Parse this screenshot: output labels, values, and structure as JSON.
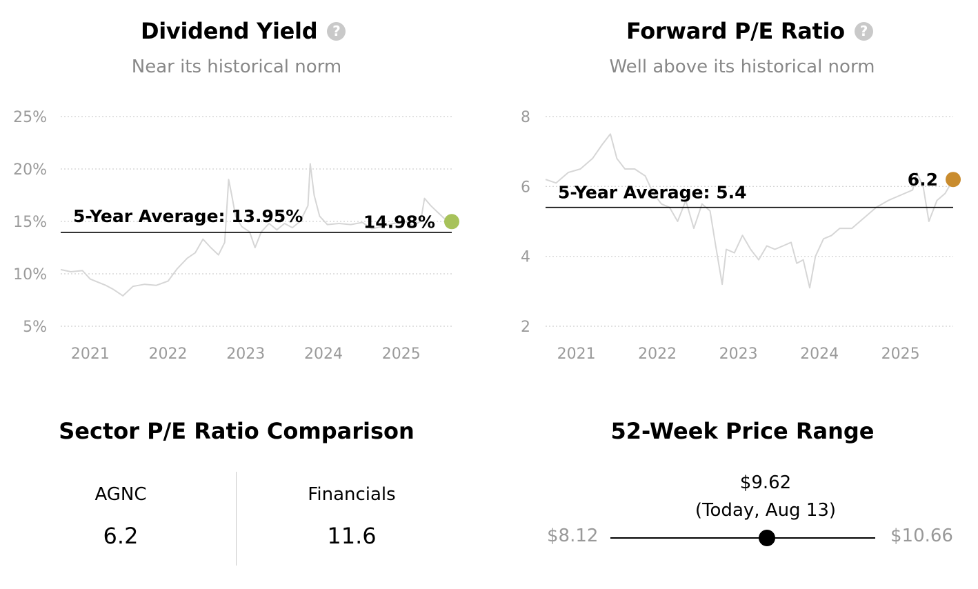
{
  "charts": [
    {
      "title": "Dividend Yield",
      "subtitle": "Near its historical norm",
      "average_label": "5-Year Average: 13.95%",
      "current_label": "14.98%",
      "current_color": "#a7c25a"
    },
    {
      "title": "Forward P/E Ratio",
      "subtitle": "Well above its historical norm",
      "average_label": "5-Year Average: 5.4",
      "current_label": "6.2",
      "current_color": "#c98c2e"
    }
  ],
  "chart_data": [
    {
      "type": "line",
      "title": "Dividend Yield",
      "y_ticks": [
        "5%",
        "10%",
        "15%",
        "20%",
        "25%"
      ],
      "y_tick_values": [
        5,
        10,
        15,
        20,
        25
      ],
      "ylim": [
        5,
        25
      ],
      "x_ticks": [
        "2021",
        "2022",
        "2023",
        "2024",
        "2025"
      ],
      "x_tick_values": [
        2021,
        2022,
        2023,
        2024,
        2025
      ],
      "xlim": [
        2020.62,
        2025.65
      ],
      "average": 13.95,
      "current": 14.98,
      "grid": true,
      "series": [
        {
          "x": [
            2020.62,
            2020.75,
            2020.9,
            2021.0,
            2021.1,
            2021.2,
            2021.3,
            2021.42,
            2021.55,
            2021.7,
            2021.85,
            2022.0,
            2022.12,
            2022.25,
            2022.35,
            2022.45,
            2022.55,
            2022.65,
            2022.73,
            2022.78,
            2022.82,
            2022.87,
            2022.95,
            2023.05,
            2023.12,
            2023.2,
            2023.3,
            2023.4,
            2023.5,
            2023.6,
            2023.7,
            2023.8,
            2023.83,
            2023.88,
            2023.95,
            2024.05,
            2024.2,
            2024.35,
            2024.5,
            2024.62,
            2024.75,
            2024.9,
            2025.05,
            2025.15,
            2025.25,
            2025.3,
            2025.38,
            2025.45,
            2025.55,
            2025.65
          ],
          "y": [
            10.4,
            10.2,
            10.3,
            9.5,
            9.2,
            8.9,
            8.5,
            7.9,
            8.8,
            9.0,
            8.9,
            9.3,
            10.5,
            11.5,
            12.0,
            13.3,
            12.5,
            11.8,
            13.0,
            19.0,
            17.5,
            15.5,
            14.5,
            14.0,
            12.5,
            14.0,
            14.8,
            14.2,
            14.8,
            14.4,
            15.0,
            16.5,
            20.5,
            17.5,
            15.5,
            14.7,
            14.8,
            14.7,
            14.9,
            14.3,
            14.5,
            14.8,
            15.0,
            14.6,
            15.0,
            17.2,
            16.5,
            16.0,
            15.3,
            14.98
          ]
        }
      ]
    },
    {
      "type": "line",
      "title": "Forward P/E Ratio",
      "y_ticks": [
        "2",
        "4",
        "6",
        "8"
      ],
      "y_tick_values": [
        2,
        4,
        6,
        8
      ],
      "ylim": [
        2,
        8
      ],
      "x_ticks": [
        "2021",
        "2022",
        "2023",
        "2024",
        "2025"
      ],
      "x_tick_values": [
        2021,
        2022,
        2023,
        2024,
        2025
      ],
      "xlim": [
        2020.62,
        2025.65
      ],
      "average": 5.4,
      "current": 6.2,
      "grid": true,
      "series": [
        {
          "x": [
            2020.62,
            2020.75,
            2020.9,
            2021.05,
            2021.2,
            2021.32,
            2021.42,
            2021.5,
            2021.6,
            2021.72,
            2021.85,
            2021.95,
            2022.05,
            2022.15,
            2022.25,
            2022.35,
            2022.45,
            2022.55,
            2022.65,
            2022.72,
            2022.8,
            2022.85,
            2022.95,
            2023.05,
            2023.15,
            2023.25,
            2023.35,
            2023.45,
            2023.55,
            2023.65,
            2023.72,
            2023.8,
            2023.88,
            2023.95,
            2024.05,
            2024.15,
            2024.25,
            2024.4,
            2024.55,
            2024.7,
            2024.85,
            2024.95,
            2025.05,
            2025.15,
            2025.2,
            2025.28,
            2025.35,
            2025.45,
            2025.55,
            2025.65
          ],
          "y": [
            6.2,
            6.1,
            6.4,
            6.5,
            6.8,
            7.2,
            7.5,
            6.8,
            6.5,
            6.5,
            6.3,
            5.8,
            5.5,
            5.4,
            5.0,
            5.6,
            4.8,
            5.5,
            5.3,
            4.3,
            3.2,
            4.2,
            4.1,
            4.6,
            4.2,
            3.9,
            4.3,
            4.2,
            4.3,
            4.4,
            3.8,
            3.9,
            3.1,
            4.0,
            4.5,
            4.6,
            4.8,
            4.8,
            5.1,
            5.4,
            5.6,
            5.7,
            5.8,
            5.9,
            6.4,
            6.0,
            5.0,
            5.6,
            5.8,
            6.2
          ]
        }
      ]
    }
  ],
  "sector": {
    "title": "Sector P/E Ratio Comparison",
    "items": [
      {
        "name": "AGNC",
        "value": "6.2"
      },
      {
        "name": "Financials",
        "value": "11.6"
      }
    ]
  },
  "price_range": {
    "title": "52-Week Price Range",
    "low": "$8.12",
    "high": "$10.66",
    "current_price": "$9.62",
    "current_note": "(Today, Aug 13)",
    "low_value": 8.12,
    "high_value": 10.66,
    "current_value": 9.62
  }
}
